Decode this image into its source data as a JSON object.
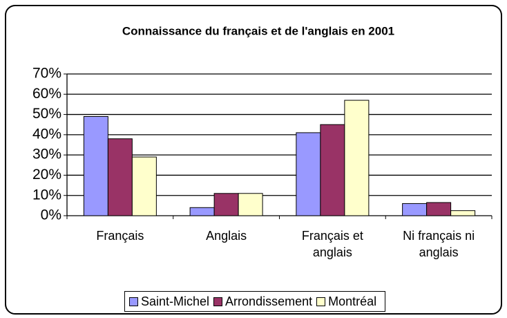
{
  "chart_data": {
    "type": "bar",
    "title": "Connaissance du français et de l'anglais en 2001",
    "categories": [
      "Français",
      "Anglais",
      "Français et anglais",
      "Ni français ni anglais"
    ],
    "series": [
      {
        "name": "Saint-Michel",
        "color": "#9999ff",
        "values": [
          49,
          4,
          41,
          6
        ]
      },
      {
        "name": "Arrondissement",
        "color": "#993366",
        "values": [
          38,
          11,
          45,
          6.5
        ]
      },
      {
        "name": "Montréal",
        "color": "#ffffcc",
        "values": [
          29,
          11,
          57,
          2.5
        ]
      }
    ],
    "ylim": [
      0,
      70
    ],
    "yticks": [
      {
        "value": 0,
        "label": "0%"
      },
      {
        "value": 10,
        "label": "10%"
      },
      {
        "value": 20,
        "label": "20%"
      },
      {
        "value": 30,
        "label": "30%"
      },
      {
        "value": 40,
        "label": "40%"
      },
      {
        "value": 50,
        "label": "50%"
      },
      {
        "value": 60,
        "label": "60%"
      },
      {
        "value": 70,
        "label": "70%"
      }
    ],
    "grid": true,
    "legend": "bottom"
  }
}
